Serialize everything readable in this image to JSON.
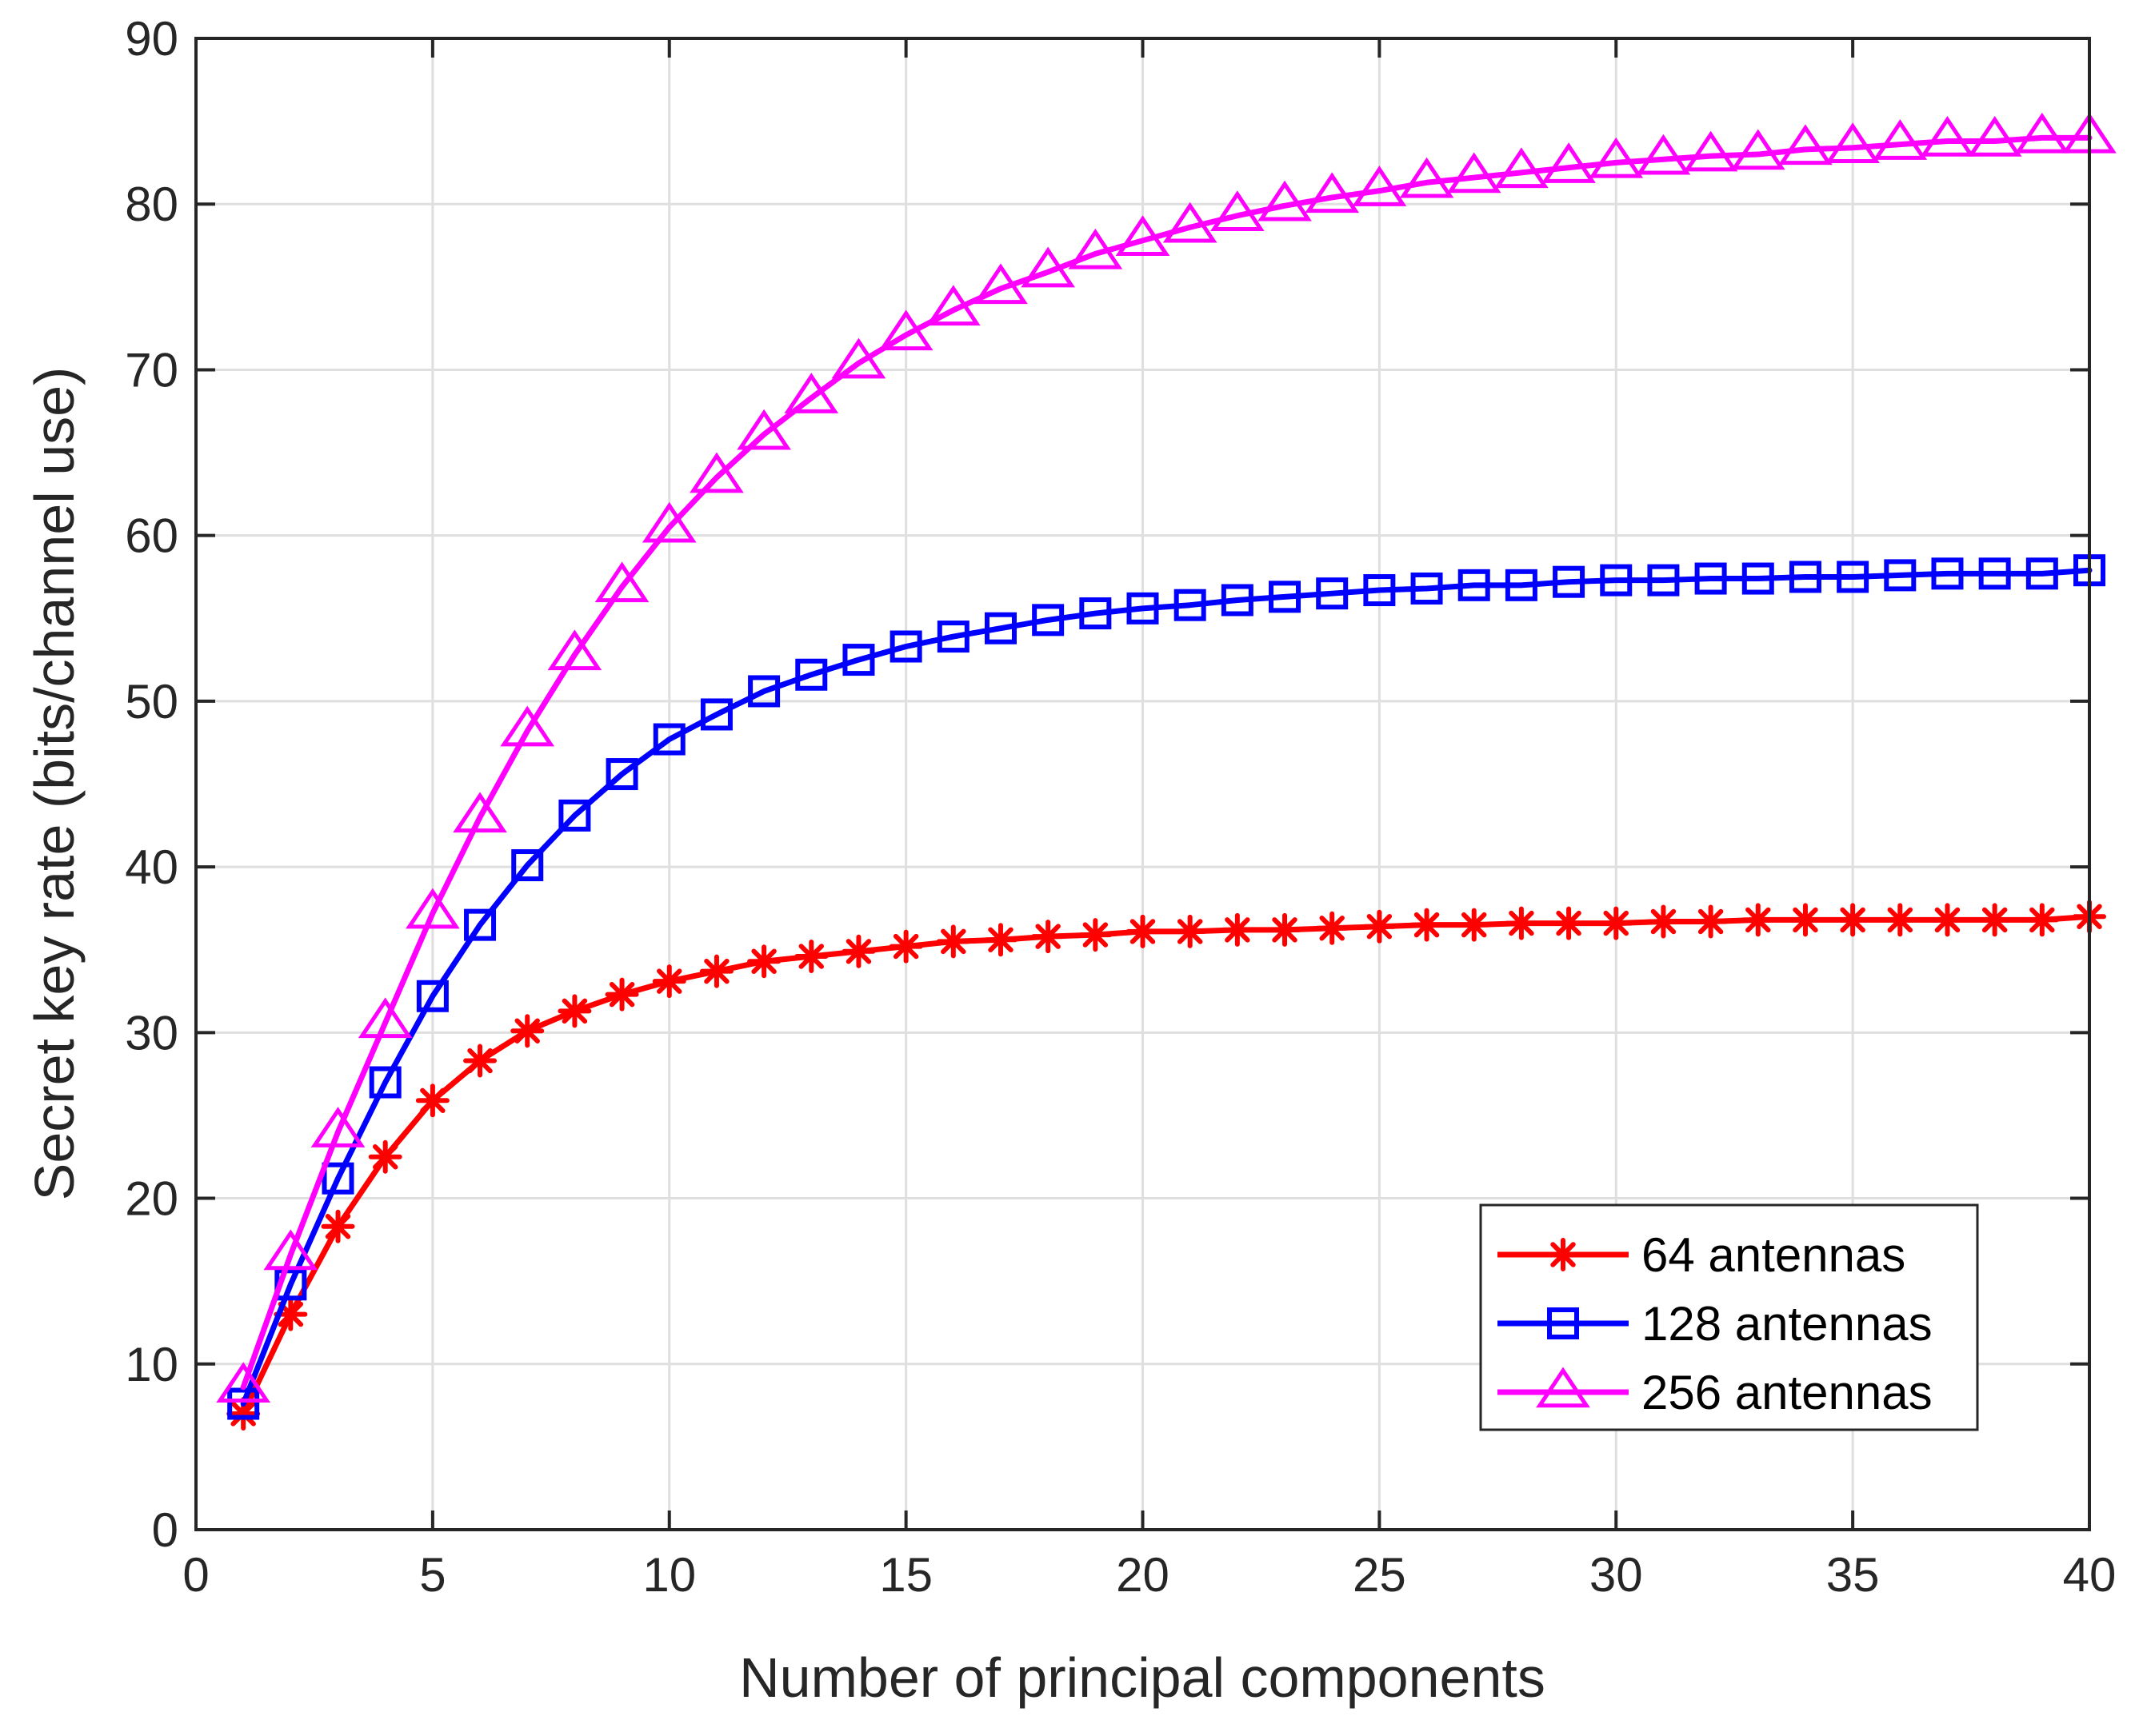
{
  "chart_data": {
    "type": "line",
    "title": "",
    "xlabel": "Number of principal components",
    "ylabel": "Secret key rate (bits/channel use)",
    "xlim": [
      0,
      40
    ],
    "ylim": [
      0,
      90
    ],
    "xticks": [
      "0",
      "5",
      "10",
      "15",
      "20",
      "25",
      "30",
      "35",
      "40"
    ],
    "yticks": [
      "0",
      "10",
      "20",
      "30",
      "40",
      "50",
      "60",
      "70",
      "80",
      "90"
    ],
    "grid": true,
    "legend_position": "bottom-right",
    "x": [
      1,
      2,
      3,
      4,
      5,
      6,
      7,
      8,
      9,
      10,
      11,
      12,
      13,
      14,
      15,
      16,
      17,
      18,
      19,
      20,
      21,
      22,
      23,
      24,
      25,
      26,
      27,
      28,
      29,
      30,
      31,
      32,
      33,
      34,
      35,
      36,
      37,
      38,
      39,
      40
    ],
    "series": [
      {
        "name": "64 antennas",
        "color": "#ff0000",
        "marker": "asterisk",
        "values": [
          7.0,
          13.0,
          18.3,
          22.5,
          25.9,
          28.3,
          30.1,
          31.3,
          32.3,
          33.1,
          33.7,
          34.3,
          34.6,
          34.9,
          35.2,
          35.5,
          35.6,
          35.8,
          35.9,
          36.1,
          36.1,
          36.2,
          36.2,
          36.3,
          36.4,
          36.5,
          36.5,
          36.6,
          36.6,
          36.6,
          36.7,
          36.7,
          36.8,
          36.8,
          36.8,
          36.8,
          36.8,
          36.8,
          36.8,
          37.0
        ]
      },
      {
        "name": "128 antennas",
        "color": "#0000ff",
        "marker": "square",
        "values": [
          7.6,
          14.8,
          21.2,
          27.0,
          32.2,
          36.5,
          40.1,
          43.1,
          45.6,
          47.7,
          49.2,
          50.6,
          51.6,
          52.5,
          53.3,
          53.9,
          54.4,
          54.9,
          55.3,
          55.6,
          55.8,
          56.1,
          56.3,
          56.5,
          56.7,
          56.8,
          57.0,
          57.0,
          57.2,
          57.3,
          57.3,
          57.4,
          57.4,
          57.5,
          57.5,
          57.6,
          57.7,
          57.7,
          57.7,
          57.9
        ]
      },
      {
        "name": "256 antennas",
        "color": "#ff00ff",
        "marker": "triangle",
        "values": [
          8.6,
          16.6,
          24.0,
          30.6,
          37.2,
          43.0,
          48.2,
          52.8,
          56.9,
          60.5,
          63.5,
          66.1,
          68.3,
          70.4,
          72.1,
          73.6,
          74.9,
          75.9,
          77.0,
          77.8,
          78.6,
          79.3,
          79.9,
          80.4,
          80.8,
          81.3,
          81.6,
          81.9,
          82.2,
          82.5,
          82.7,
          82.9,
          83.0,
          83.3,
          83.4,
          83.6,
          83.8,
          83.8,
          84.0,
          84.0
        ]
      }
    ]
  }
}
